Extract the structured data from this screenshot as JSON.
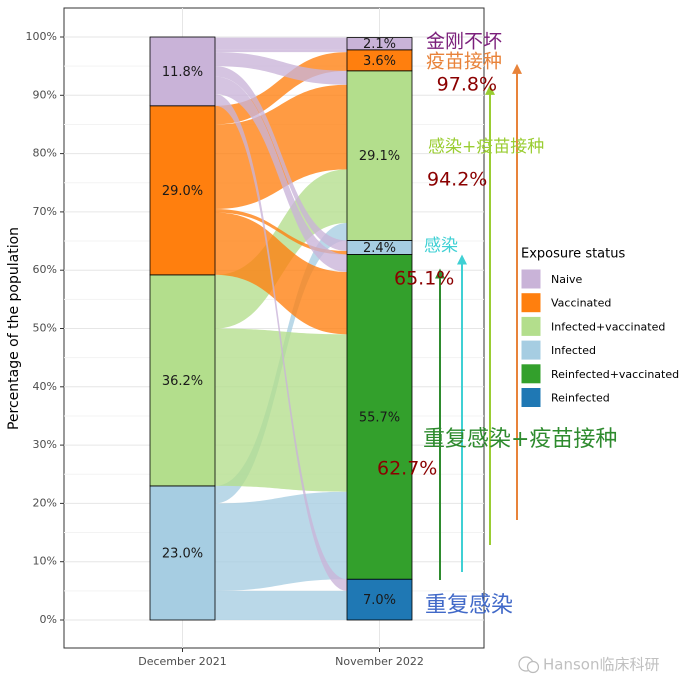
{
  "chart_data": {
    "type": "alluvial",
    "ylabel": "Percentage of the population",
    "yticks": [
      "0%",
      "10%",
      "20%",
      "30%",
      "40%",
      "50%",
      "60%",
      "70%",
      "80%",
      "90%",
      "100%"
    ],
    "ylim": [
      0,
      100
    ],
    "axes": [
      "December 2021",
      "November 2022"
    ],
    "grid": true,
    "legend": {
      "title": "Exposure status",
      "position": "right",
      "entries": [
        {
          "label": "Naive",
          "color": "#c9b3d8"
        },
        {
          "label": "Vaccinated",
          "color": "#ff7f0e"
        },
        {
          "label": "Infected+vaccinated",
          "color": "#b3de8c"
        },
        {
          "label": "Infected",
          "color": "#a6cde2"
        },
        {
          "label": "Reinfected+vaccinated",
          "color": "#33a02c"
        },
        {
          "label": "Reinfected",
          "color": "#1f78b4"
        }
      ]
    },
    "stacks": [
      {
        "axis": "December 2021",
        "segments": [
          {
            "status": "Infected",
            "value": 23.0,
            "label": "23.0%"
          },
          {
            "status": "Infected+vaccinated",
            "value": 36.2,
            "label": "36.2%"
          },
          {
            "status": "Vaccinated",
            "value": 29.0,
            "label": "29.0%"
          },
          {
            "status": "Naive",
            "value": 11.8,
            "label": "11.8%"
          }
        ]
      },
      {
        "axis": "November 2022",
        "segments": [
          {
            "status": "Reinfected",
            "value": 7.0,
            "label": "7.0%"
          },
          {
            "status": "Reinfected+vaccinated",
            "value": 55.7,
            "label": "55.7%"
          },
          {
            "status": "Infected",
            "value": 2.4,
            "label": "2.4%"
          },
          {
            "status": "Infected+vaccinated",
            "value": 29.1,
            "label": "29.1%"
          },
          {
            "status": "Vaccinated",
            "value": 3.6,
            "label": "3.6%"
          },
          {
            "status": "Naive",
            "value": 2.1,
            "label": "2.1%"
          }
        ]
      }
    ],
    "flows": [
      {
        "from": "Infected",
        "to": "Reinfected",
        "value": 5.0
      },
      {
        "from": "Infected",
        "to": "Reinfected+vaccinated",
        "value": 15.0
      },
      {
        "from": "Infected",
        "to": "Infected+vaccinated",
        "value": 3.0
      },
      {
        "from": "Infected+vaccinated",
        "to": "Reinfected+vaccinated",
        "value": 27.0
      },
      {
        "from": "Infected+vaccinated",
        "to": "Infected+vaccinated",
        "value": 9.2
      },
      {
        "from": "Vaccinated",
        "to": "Reinfected+vaccinated",
        "value": 10.7
      },
      {
        "from": "Vaccinated",
        "to": "Infected",
        "value": 0.6
      },
      {
        "from": "Vaccinated",
        "to": "Infected+vaccinated",
        "value": 14.5
      },
      {
        "from": "Vaccinated",
        "to": "Vaccinated",
        "value": 3.2
      },
      {
        "from": "Naive",
        "to": "Reinfected",
        "value": 2.0
      },
      {
        "from": "Naive",
        "to": "Reinfected+vaccinated",
        "value": 3.0
      },
      {
        "from": "Naive",
        "to": "Infected",
        "value": 1.8
      },
      {
        "from": "Naive",
        "to": "Infected+vaccinated",
        "value": 2.4
      },
      {
        "from": "Naive",
        "to": "Vaccinated",
        "value": 0.4
      },
      {
        "from": "Naive",
        "to": "Naive",
        "value": 2.1
      }
    ],
    "annotations": [
      {
        "text": "金刚不坏",
        "color": "#7b1f7b"
      },
      {
        "text": "疫苗接种",
        "color": "#e8833a"
      },
      {
        "text": "97.8%",
        "color": "#8b0000"
      },
      {
        "text": "感染+疫苗接种",
        "color": "#9acd32"
      },
      {
        "text": "94.2%",
        "color": "#8b0000"
      },
      {
        "text": "感染",
        "color": "#3fd0d4"
      },
      {
        "text": "65.1%",
        "color": "#8b0000"
      },
      {
        "text": "重复感染+疫苗接种",
        "color": "#2e8b2e"
      },
      {
        "text": "62.7%",
        "color": "#8b0000"
      },
      {
        "text": "重复感染",
        "color": "#4169c8"
      }
    ],
    "arrows": [
      {
        "label": "62.7%",
        "value": 62.7,
        "color": "#2e8b2e"
      },
      {
        "label": "65.1%",
        "value": 65.1,
        "color": "#3fd0d4"
      },
      {
        "label": "94.2%",
        "value": 94.2,
        "color": "#9acd32"
      },
      {
        "label": "97.8%",
        "value": 97.8,
        "color": "#e8833a"
      }
    ]
  },
  "watermark": {
    "text": "Hanson临床科研",
    "icon": "wechat-icon"
  }
}
